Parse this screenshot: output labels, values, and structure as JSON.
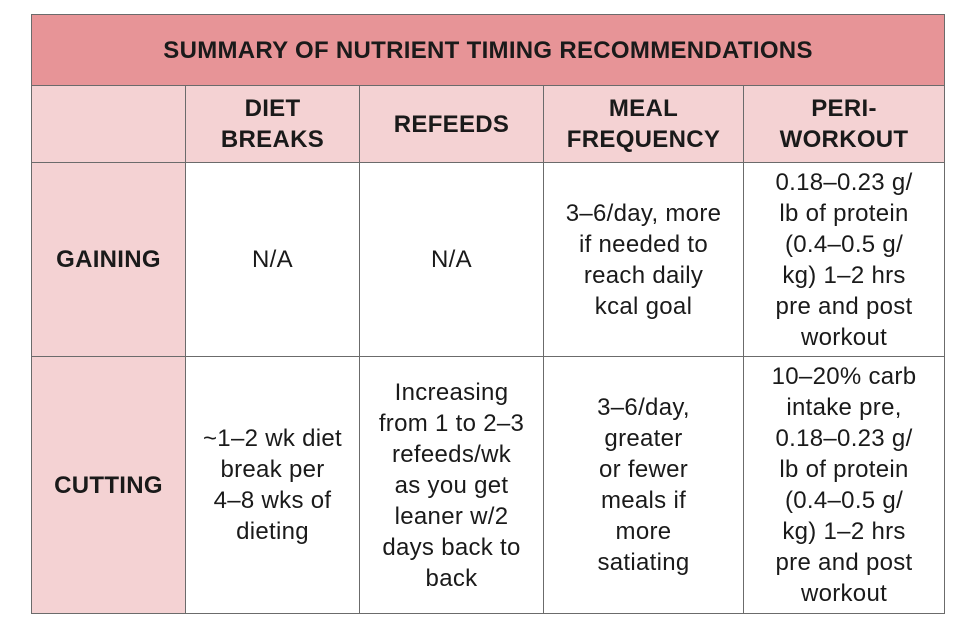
{
  "table": {
    "title": "SUMMARY OF NUTRIENT TIMING RECOMMENDATIONS",
    "headers": [
      [
        "DIET",
        "BREAKS"
      ],
      [
        "REFEEDS"
      ],
      [
        "MEAL",
        "FREQUENCY"
      ],
      [
        "PERI-",
        "WORKOUT"
      ]
    ],
    "rows": [
      {
        "label": "GAINING",
        "cells": [
          [
            "N/A"
          ],
          [
            "N/A"
          ],
          [
            "3–6/day, more",
            "if needed to",
            "reach daily",
            "kcal goal"
          ],
          [
            "0.18–0.23 g/",
            "lb of protein",
            "(0.4–0.5 g/",
            "kg) 1–2 hrs",
            "pre and post",
            "workout"
          ]
        ]
      },
      {
        "label": "CUTTING",
        "cells": [
          [
            "~1–2 wk diet",
            "break per",
            "4–8 wks of",
            "dieting"
          ],
          [
            "Increasing",
            "from 1 to 2–3",
            "refeeds/wk",
            "as you get",
            "leaner w/2",
            "days back to",
            "back"
          ],
          [
            "3–6/day,",
            "greater",
            "or fewer",
            "meals if",
            "more",
            "satiating"
          ],
          [
            "10–20% carb",
            "intake pre,",
            "0.18–0.23 g/",
            "lb of protein",
            "(0.4–0.5 g/",
            "kg) 1–2 hrs",
            "pre and post",
            "workout"
          ]
        ]
      }
    ]
  }
}
